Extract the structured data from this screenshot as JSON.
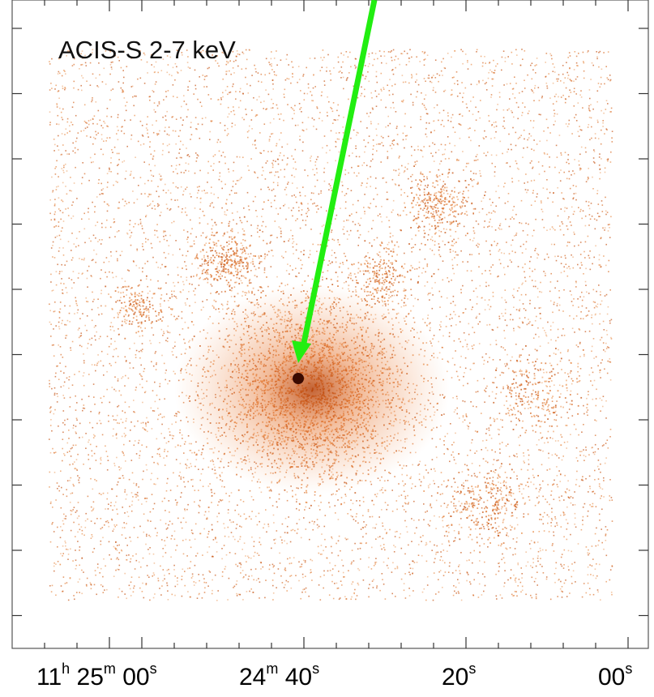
{
  "image": {
    "label": "ACIS-S 2-7 keV"
  },
  "x_axis": {
    "ticks": [
      {
        "parts": [
          "11",
          "h",
          " 25",
          "m",
          " 00",
          "s"
        ]
      },
      {
        "parts": [
          "24",
          "m",
          " 40",
          "s"
        ]
      },
      {
        "parts": [
          "20",
          "s"
        ]
      },
      {
        "parts": [
          "00",
          "s"
        ]
      }
    ]
  }
}
